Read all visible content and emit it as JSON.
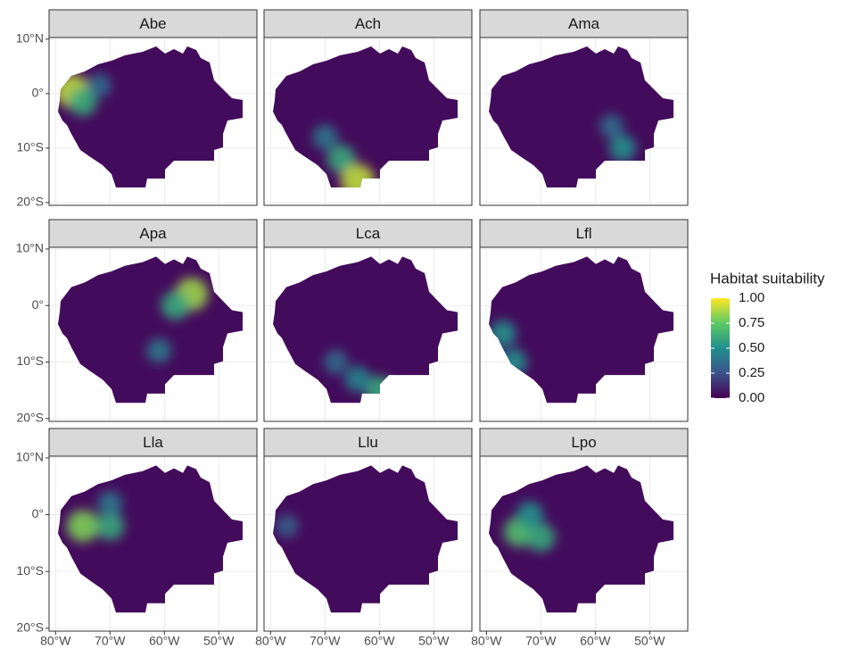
{
  "chart_data": {
    "type": "map",
    "panels": [
      {
        "title": "Abe",
        "hotspots": [
          {
            "lon": -77,
            "lat": 0.5,
            "value": 0.9
          },
          {
            "lon": -75,
            "lat": -1.5,
            "value": 0.6
          },
          {
            "lon": -72,
            "lat": 1.5,
            "value": 0.35
          }
        ]
      },
      {
        "title": "Ach",
        "hotspots": [
          {
            "lon": -67,
            "lat": -12,
            "value": 0.6
          },
          {
            "lon": -64,
            "lat": -16,
            "value": 0.9
          },
          {
            "lon": -70,
            "lat": -8,
            "value": 0.4
          }
        ]
      },
      {
        "title": "Ama",
        "hotspots": [
          {
            "lon": -55,
            "lat": -10,
            "value": 0.5
          },
          {
            "lon": -57,
            "lat": -6,
            "value": 0.35
          }
        ]
      },
      {
        "title": "Apa",
        "hotspots": [
          {
            "lon": -55,
            "lat": 2,
            "value": 0.85
          },
          {
            "lon": -58,
            "lat": 0,
            "value": 0.6
          },
          {
            "lon": -61,
            "lat": -8,
            "value": 0.4
          }
        ]
      },
      {
        "title": "Lca",
        "hotspots": [
          {
            "lon": -60,
            "lat": -15,
            "value": 0.6
          },
          {
            "lon": -68,
            "lat": -10,
            "value": 0.35
          },
          {
            "lon": -64,
            "lat": -13,
            "value": 0.45
          }
        ]
      },
      {
        "title": "Lfl",
        "hotspots": [
          {
            "lon": -77,
            "lat": -5,
            "value": 0.5
          },
          {
            "lon": -75,
            "lat": -10,
            "value": 0.5
          }
        ]
      },
      {
        "title": "Lla",
        "hotspots": [
          {
            "lon": -75,
            "lat": -2,
            "value": 0.8
          },
          {
            "lon": -70,
            "lat": -2,
            "value": 0.6
          },
          {
            "lon": -70,
            "lat": 2,
            "value": 0.4
          }
        ]
      },
      {
        "title": "Llu",
        "hotspots": [
          {
            "lon": -77,
            "lat": -2,
            "value": 0.3
          }
        ]
      },
      {
        "title": "Lpo",
        "hotspots": [
          {
            "lon": -74,
            "lat": -3,
            "value": 0.7
          },
          {
            "lon": -70,
            "lat": -4,
            "value": 0.6
          },
          {
            "lon": -72,
            "lat": 0,
            "value": 0.5
          }
        ]
      }
    ],
    "xlim": [
      -81.2,
      -43
    ],
    "ylim": [
      -20.5,
      10.3
    ],
    "xticks": [
      {
        "value": -80,
        "label": "80°W"
      },
      {
        "value": -70,
        "label": "70°W"
      },
      {
        "value": -60,
        "label": "60°W"
      },
      {
        "value": -50,
        "label": "50°W"
      }
    ],
    "yticks": [
      {
        "value": 10,
        "label": "10°N"
      },
      {
        "value": 0,
        "label": "0°"
      },
      {
        "value": -10,
        "label": "10°S"
      },
      {
        "value": -20,
        "label": "20°S"
      }
    ],
    "grid": true,
    "legend": {
      "title": "Habitat suitability",
      "lim": [
        0,
        1
      ],
      "ticks": [
        {
          "value": 0,
          "label": "0.00"
        },
        {
          "value": 0.25,
          "label": "0.25"
        },
        {
          "value": 0.5,
          "label": "0.50"
        },
        {
          "value": 0.75,
          "label": "0.75"
        },
        {
          "value": 1,
          "label": "1.00"
        }
      ]
    }
  }
}
